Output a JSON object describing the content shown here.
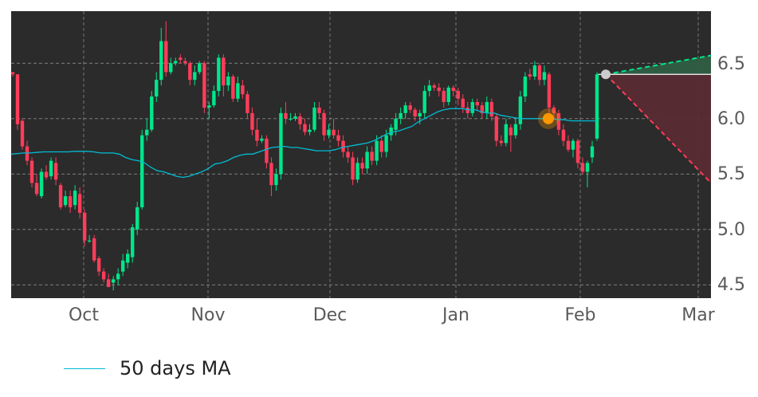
{
  "chart_data": {
    "type": "candlestick",
    "x_tick_labels": [
      "Oct",
      "Nov",
      "Dec",
      "Jan",
      "Feb",
      "Mar"
    ],
    "y_tick_labels": [
      "4.5",
      "5.0",
      "5.5",
      "6.0",
      "6.5"
    ],
    "ylim": [
      4.38,
      6.97
    ],
    "grid": true,
    "legend_placement": "bottom-left",
    "legend": [
      {
        "name": "50 days MA",
        "color": "#00bcd4"
      }
    ],
    "colors": {
      "background": "#2b2b2b",
      "up": "#00e68a",
      "down": "#ff3d5a",
      "ma": "#00bcd4",
      "marker": "#ff9800",
      "projection_up": "#00e68a",
      "projection_down": "#ff3d5a",
      "last_price_dot": "#cccccc"
    },
    "price_start": 6.42,
    "candles": [
      [
        6.42,
        6.4,
        6.42,
        6.38
      ],
      [
        6.4,
        5.95,
        6.4,
        5.9
      ],
      [
        5.98,
        5.75,
        6.0,
        5.72
      ],
      [
        5.75,
        5.62,
        5.8,
        5.58
      ],
      [
        5.62,
        5.42,
        5.65,
        5.38
      ],
      [
        5.42,
        5.32,
        5.5,
        5.3
      ],
      [
        5.3,
        5.52,
        5.55,
        5.28
      ],
      [
        5.52,
        5.47,
        5.58,
        5.45
      ],
      [
        5.48,
        5.62,
        5.65,
        5.45
      ],
      [
        5.6,
        5.45,
        5.65,
        5.4
      ],
      [
        5.4,
        5.2,
        5.42,
        5.18
      ],
      [
        5.22,
        5.3,
        5.35,
        5.2
      ],
      [
        5.3,
        5.2,
        5.35,
        5.15
      ],
      [
        5.22,
        5.35,
        5.4,
        5.18
      ],
      [
        5.32,
        5.15,
        5.38,
        5.1
      ],
      [
        5.15,
        4.9,
        5.18,
        4.85
      ],
      [
        4.9,
        4.9,
        4.95,
        4.88
      ],
      [
        4.92,
        4.72,
        4.95,
        4.7
      ],
      [
        4.74,
        4.62,
        4.76,
        4.58
      ],
      [
        4.62,
        4.55,
        4.65,
        4.52
      ],
      [
        4.55,
        4.48,
        4.6,
        4.5
      ],
      [
        4.52,
        4.55,
        4.58,
        4.45
      ],
      [
        4.55,
        4.6,
        4.65,
        4.5
      ],
      [
        4.62,
        4.72,
        4.78,
        4.58
      ],
      [
        4.7,
        4.78,
        4.82,
        4.65
      ],
      [
        4.75,
        5.02,
        5.05,
        4.7
      ],
      [
        5.0,
        5.2,
        5.25,
        4.95
      ],
      [
        5.2,
        5.85,
        5.9,
        5.18
      ],
      [
        5.85,
        5.9,
        6.0,
        5.8
      ],
      [
        5.9,
        6.2,
        6.25,
        5.88
      ],
      [
        6.2,
        6.35,
        6.42,
        6.15
      ],
      [
        6.35,
        6.7,
        6.82,
        6.3
      ],
      [
        6.7,
        6.42,
        6.88,
        6.38
      ],
      [
        6.42,
        6.5,
        6.55,
        6.4
      ],
      [
        6.5,
        6.52,
        6.55,
        6.48
      ],
      [
        6.55,
        6.53,
        6.58,
        6.5
      ],
      [
        6.52,
        6.5,
        6.55,
        6.48
      ],
      [
        6.5,
        6.35,
        6.52,
        6.3
      ],
      [
        6.35,
        6.42,
        6.48,
        6.3
      ],
      [
        6.42,
        6.5,
        6.52,
        6.4
      ],
      [
        6.5,
        6.1,
        6.52,
        6.05
      ],
      [
        6.1,
        6.12,
        6.15,
        6.0
      ],
      [
        6.12,
        6.25,
        6.3,
        6.1
      ],
      [
        6.25,
        6.55,
        6.58,
        6.2
      ],
      [
        6.55,
        6.3,
        6.58,
        6.2
      ],
      [
        6.3,
        6.38,
        6.42,
        6.25
      ],
      [
        6.38,
        6.18,
        6.4,
        6.15
      ],
      [
        6.18,
        6.32,
        6.38,
        6.15
      ],
      [
        6.3,
        6.22,
        6.35,
        6.18
      ],
      [
        6.22,
        6.05,
        6.25,
        6.0
      ],
      [
        6.05,
        5.9,
        6.1,
        5.85
      ],
      [
        5.9,
        5.8,
        6.0,
        5.75
      ],
      [
        5.8,
        5.82,
        5.85,
        5.78
      ],
      [
        5.82,
        5.6,
        5.85,
        5.55
      ],
      [
        5.6,
        5.4,
        5.65,
        5.3
      ],
      [
        5.4,
        5.5,
        5.55,
        5.35
      ],
      [
        5.5,
        6.05,
        6.1,
        5.45
      ],
      [
        6.05,
        6.0,
        6.15,
        5.95
      ],
      [
        6.0,
        6.0,
        6.05,
        5.98
      ],
      [
        6.0,
        6.02,
        6.05,
        5.98
      ],
      [
        6.02,
        5.95,
        6.05,
        5.9
      ],
      [
        5.95,
        5.88,
        6.0,
        5.85
      ],
      [
        5.88,
        5.9,
        5.95,
        5.85
      ],
      [
        5.9,
        6.1,
        6.15,
        5.88
      ],
      [
        6.1,
        6.05,
        6.15,
        6.0
      ],
      [
        6.05,
        5.85,
        6.08,
        5.8
      ],
      [
        5.85,
        5.9,
        5.95,
        5.82
      ],
      [
        5.9,
        5.85,
        6.0,
        5.82
      ],
      [
        5.85,
        5.8,
        5.9,
        5.75
      ],
      [
        5.8,
        5.7,
        5.85,
        5.65
      ],
      [
        5.7,
        5.65,
        5.75,
        5.6
      ],
      [
        5.65,
        5.45,
        5.7,
        5.4
      ],
      [
        5.45,
        5.6,
        5.65,
        5.42
      ],
      [
        5.6,
        5.55,
        5.65,
        5.5
      ],
      [
        5.55,
        5.7,
        5.75,
        5.5
      ],
      [
        5.7,
        5.62,
        5.75,
        5.58
      ],
      [
        5.62,
        5.8,
        5.85,
        5.58
      ],
      [
        5.8,
        5.7,
        5.85,
        5.65
      ],
      [
        5.7,
        5.85,
        5.9,
        5.65
      ],
      [
        5.85,
        5.92,
        5.95,
        5.8
      ],
      [
        5.9,
        6.0,
        6.05,
        5.85
      ],
      [
        6.0,
        6.05,
        6.1,
        5.95
      ],
      [
        6.05,
        6.12,
        6.15,
        6.0
      ],
      [
        6.12,
        6.08,
        6.15,
        6.05
      ],
      [
        6.08,
        6.02,
        6.1,
        5.98
      ],
      [
        6.02,
        6.05,
        6.08,
        5.95
      ],
      [
        6.05,
        6.25,
        6.3,
        6.0
      ],
      [
        6.25,
        6.3,
        6.35,
        6.2
      ],
      [
        6.3,
        6.28,
        6.32,
        6.25
      ],
      [
        6.28,
        6.25,
        6.32,
        6.2
      ],
      [
        6.25,
        6.15,
        6.28,
        6.1
      ],
      [
        6.15,
        6.28,
        6.3,
        6.12
      ],
      [
        6.28,
        6.25,
        6.3,
        6.2
      ],
      [
        6.25,
        6.18,
        6.28,
        6.12
      ],
      [
        6.18,
        6.1,
        6.22,
        6.05
      ],
      [
        6.1,
        6.05,
        6.15,
        6.0
      ],
      [
        6.05,
        6.15,
        6.18,
        6.02
      ],
      [
        6.15,
        6.12,
        6.18,
        6.08
      ],
      [
        6.12,
        6.05,
        6.15,
        6.0
      ],
      [
        6.05,
        6.15,
        6.2,
        6.0
      ],
      [
        6.15,
        6.02,
        6.18,
        5.98
      ],
      [
        6.02,
        5.8,
        6.05,
        5.75
      ],
      [
        5.8,
        5.78,
        5.85,
        5.75
      ],
      [
        5.78,
        5.95,
        6.0,
        5.75
      ],
      [
        5.92,
        5.85,
        5.95,
        5.7
      ],
      [
        5.85,
        5.95,
        6.0,
        5.82
      ],
      [
        5.95,
        6.2,
        6.25,
        5.9
      ],
      [
        6.2,
        6.38,
        6.42,
        6.15
      ],
      [
        6.4,
        6.38,
        6.45,
        6.35
      ],
      [
        6.38,
        6.48,
        6.52,
        6.35
      ],
      [
        6.48,
        6.35,
        6.5,
        6.3
      ],
      [
        6.35,
        6.42,
        6.48,
        6.3
      ],
      [
        6.4,
        6.1,
        6.42,
        6.05
      ],
      [
        6.1,
        6.05,
        6.12,
        6.0
      ],
      [
        6.05,
        5.9,
        6.08,
        5.85
      ],
      [
        5.9,
        5.8,
        5.95,
        5.75
      ],
      [
        5.8,
        5.72,
        5.85,
        5.7
      ],
      [
        5.72,
        5.8,
        5.82,
        5.65
      ],
      [
        5.8,
        5.6,
        5.82,
        5.55
      ],
      [
        5.6,
        5.52,
        5.65,
        5.5
      ],
      [
        5.52,
        5.6,
        5.62,
        5.38
      ],
      [
        5.65,
        5.75,
        5.8,
        5.6
      ],
      [
        5.82,
        6.4,
        6.42,
        5.8
      ]
    ],
    "ma": [
      5.68,
      5.685,
      5.69,
      5.69,
      5.695,
      5.7,
      5.7,
      5.7,
      5.7,
      5.7,
      5.705,
      5.705,
      5.705,
      5.7,
      5.69,
      5.69,
      5.69,
      5.68,
      5.65,
      5.63,
      5.62,
      5.6,
      5.56,
      5.53,
      5.52,
      5.5,
      5.48,
      5.47,
      5.48,
      5.5,
      5.52,
      5.55,
      5.59,
      5.6,
      5.62,
      5.65,
      5.67,
      5.68,
      5.68,
      5.7,
      5.72,
      5.74,
      5.745,
      5.75,
      5.74,
      5.74,
      5.73,
      5.72,
      5.71,
      5.71,
      5.71,
      5.72,
      5.74,
      5.75,
      5.76,
      5.77,
      5.78,
      5.8,
      5.83,
      5.86,
      5.88,
      5.89,
      5.91,
      5.93,
      5.97,
      6.0,
      6.03,
      6.06,
      6.08,
      6.09,
      6.09,
      6.09,
      6.08,
      6.08,
      6.06,
      6.05,
      6.05,
      6.03,
      6.02,
      6.01,
      6.0,
      6.0,
      6.0,
      6.0,
      6.0,
      6.0,
      5.99,
      5.99,
      5.98,
      5.98,
      5.98,
      5.98,
      5.98
    ],
    "marker": {
      "price": 6.0
    },
    "last_price": 6.4,
    "projection": {
      "upper_end": 6.57,
      "lower_end": 5.42
    }
  }
}
